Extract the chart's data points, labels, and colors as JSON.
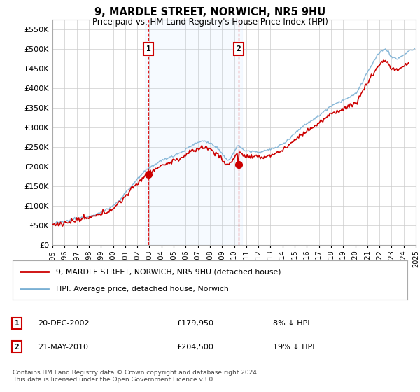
{
  "title": "9, MARDLE STREET, NORWICH, NR5 9HU",
  "subtitle": "Price paid vs. HM Land Registry's House Price Index (HPI)",
  "ylim": [
    0,
    575000
  ],
  "yticks": [
    0,
    50000,
    100000,
    150000,
    200000,
    250000,
    300000,
    350000,
    400000,
    450000,
    500000,
    550000
  ],
  "property_color": "#cc0000",
  "hpi_color": "#7ab0d4",
  "property_label": "9, MARDLE STREET, NORWICH, NR5 9HU (detached house)",
  "hpi_label": "HPI: Average price, detached house, Norwich",
  "sale1_date": "20-DEC-2002",
  "sale1_price": 179950,
  "sale1_label": "£179,950",
  "sale1_pct": "8% ↓ HPI",
  "sale1_year": 2002.917,
  "sale2_date": "21-MAY-2010",
  "sale2_label": "£204,500",
  "sale2_price": 204500,
  "sale2_pct": "19% ↓ HPI",
  "sale2_year": 2010.375,
  "footer": "Contains HM Land Registry data © Crown copyright and database right 2024.\nThis data is licensed under the Open Government Licence v3.0.",
  "bg_color": "#ffffff",
  "grid_color": "#cccccc",
  "highlight_bg": "#ddeeff"
}
